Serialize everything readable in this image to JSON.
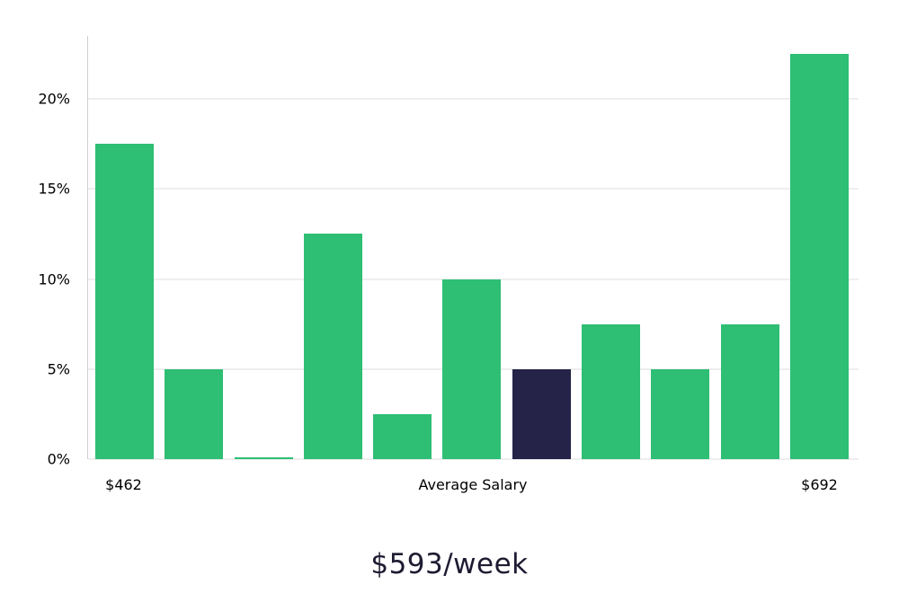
{
  "chart_data": {
    "type": "bar",
    "title": "$593/week",
    "x_labels": {
      "min": "$462",
      "center": "Average Salary",
      "max": "$692"
    },
    "values": [
      17.5,
      5,
      0.1,
      12.5,
      2.5,
      10,
      5,
      7.5,
      5,
      7.5,
      22.5
    ],
    "highlight_index": 6,
    "yticks": [
      0,
      5,
      10,
      15,
      20
    ],
    "ytick_labels": [
      "0%",
      "5%",
      "10%",
      "15%",
      "20%"
    ],
    "ylim": [
      0,
      23.5
    ],
    "grid": true,
    "legend": "none",
    "colors": {
      "bar": "#2EBE74",
      "highlight": "#252348",
      "gridline": "#dcdcdc",
      "axis": "#cfcfcf",
      "tick_text": "#000000",
      "title_text": "#1d1b31"
    }
  }
}
